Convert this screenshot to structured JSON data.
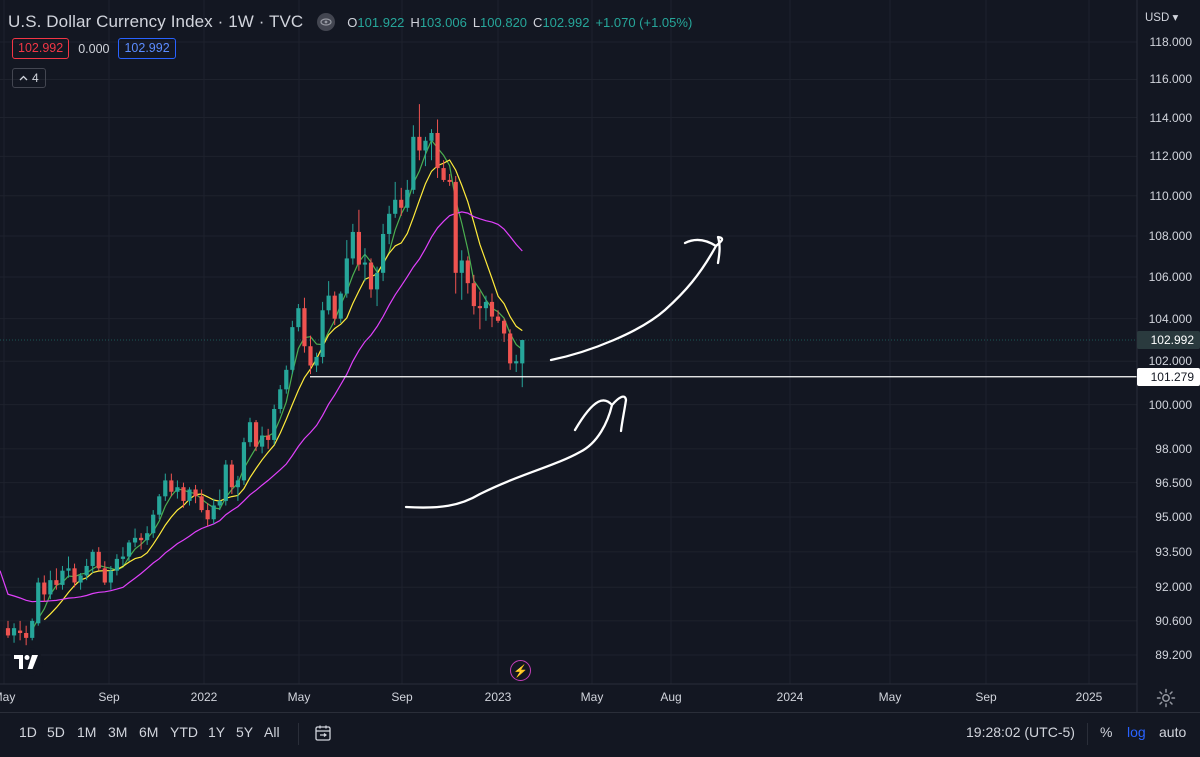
{
  "legend": {
    "title": "U.S. Dollar Currency Index · 1W · TVC",
    "o_key": "O",
    "o_val": "101.922",
    "h_key": "H",
    "h_val": "103.006",
    "l_key": "L",
    "l_val": "100.820",
    "c_key": "C",
    "c_val": "102.992",
    "change": "+1.070 (+1.05%)"
  },
  "indicators": {
    "box1": "102.992",
    "mid": "0.000",
    "box2": "102.992",
    "collapsed_count": "4"
  },
  "axis": {
    "currency": "USD",
    "price_labels": [
      "118.000",
      "116.000",
      "114.000",
      "112.000",
      "110.000",
      "108.000",
      "106.000",
      "104.000",
      "102.000",
      "100.000",
      "98.000",
      "96.500",
      "95.000",
      "93.500",
      "92.000",
      "90.600",
      "89.200"
    ],
    "last_price": "102.992",
    "line_price": "101.279",
    "time_labels": [
      "May",
      "Sep",
      "2022",
      "May",
      "Sep",
      "2023",
      "May",
      "Aug",
      "2024",
      "May",
      "Sep",
      "2025"
    ]
  },
  "colors": {
    "bg": "#131722",
    "up": "#26a69a",
    "down": "#ef5350",
    "ma_green": "#4caf50",
    "ma_yellow": "#ffeb3b",
    "ma_purple": "#e040fb"
  },
  "icons": [
    "eye-icon",
    "chevron-icon",
    "tradingview-logo-icon",
    "lightning-icon",
    "gear-icon",
    "calendar-range-icon"
  ],
  "bottom": {
    "ranges": [
      "1D",
      "5D",
      "1M",
      "3M",
      "6M",
      "YTD",
      "1Y",
      "5Y",
      "All"
    ],
    "clock": "19:28:02 (UTC-5)",
    "percent": "%",
    "log": "log",
    "auto": "auto"
  },
  "chart_data": {
    "type": "candlestick",
    "title": "U.S. Dollar Currency Index · 1W · TVC",
    "interval": "1W",
    "ylabel": "USD",
    "ylim": [
      88.5,
      119
    ],
    "y_scale": "log",
    "grid": true,
    "first_week": "2021-05-10",
    "last_week": "2023-01-23",
    "candles": [
      {
        "o": 90.3,
        "h": 90.6,
        "l": 89.9,
        "c": 90.0
      },
      {
        "o": 90.0,
        "h": 90.5,
        "l": 89.7,
        "c": 90.3
      },
      {
        "o": 90.2,
        "h": 90.6,
        "l": 89.8,
        "c": 90.1
      },
      {
        "o": 90.1,
        "h": 90.4,
        "l": 89.6,
        "c": 89.9
      },
      {
        "o": 89.9,
        "h": 90.7,
        "l": 89.8,
        "c": 90.6
      },
      {
        "o": 90.5,
        "h": 92.4,
        "l": 90.4,
        "c": 92.2
      },
      {
        "o": 92.2,
        "h": 92.5,
        "l": 91.4,
        "c": 91.7
      },
      {
        "o": 91.7,
        "h": 92.7,
        "l": 91.5,
        "c": 92.3
      },
      {
        "o": 92.3,
        "h": 92.8,
        "l": 91.9,
        "c": 92.1
      },
      {
        "o": 92.1,
        "h": 92.9,
        "l": 91.9,
        "c": 92.7
      },
      {
        "o": 92.7,
        "h": 93.3,
        "l": 92.4,
        "c": 92.8
      },
      {
        "o": 92.8,
        "h": 93.0,
        "l": 92.0,
        "c": 92.2
      },
      {
        "o": 92.2,
        "h": 92.6,
        "l": 91.9,
        "c": 92.5
      },
      {
        "o": 92.5,
        "h": 93.2,
        "l": 92.3,
        "c": 92.9
      },
      {
        "o": 92.9,
        "h": 93.6,
        "l": 92.6,
        "c": 93.5
      },
      {
        "o": 93.5,
        "h": 93.7,
        "l": 92.7,
        "c": 92.8
      },
      {
        "o": 92.8,
        "h": 93.1,
        "l": 92.1,
        "c": 92.2
      },
      {
        "o": 92.2,
        "h": 92.9,
        "l": 91.9,
        "c": 92.7
      },
      {
        "o": 92.7,
        "h": 93.4,
        "l": 92.5,
        "c": 93.2
      },
      {
        "o": 93.2,
        "h": 93.7,
        "l": 92.9,
        "c": 93.3
      },
      {
        "o": 93.3,
        "h": 94.0,
        "l": 93.1,
        "c": 93.9
      },
      {
        "o": 93.9,
        "h": 94.5,
        "l": 93.7,
        "c": 94.1
      },
      {
        "o": 94.1,
        "h": 94.3,
        "l": 93.6,
        "c": 94.0
      },
      {
        "o": 94.0,
        "h": 94.6,
        "l": 93.8,
        "c": 94.3
      },
      {
        "o": 94.3,
        "h": 95.3,
        "l": 94.1,
        "c": 95.1
      },
      {
        "o": 95.1,
        "h": 96.0,
        "l": 94.9,
        "c": 95.9
      },
      {
        "o": 95.9,
        "h": 96.9,
        "l": 95.7,
        "c": 96.6
      },
      {
        "o": 96.6,
        "h": 96.9,
        "l": 95.9,
        "c": 96.1
      },
      {
        "o": 96.1,
        "h": 96.6,
        "l": 95.8,
        "c": 96.3
      },
      {
        "o": 96.3,
        "h": 96.5,
        "l": 95.4,
        "c": 95.7
      },
      {
        "o": 95.7,
        "h": 96.3,
        "l": 95.5,
        "c": 96.2
      },
      {
        "o": 96.2,
        "h": 96.4,
        "l": 95.6,
        "c": 95.9
      },
      {
        "o": 95.9,
        "h": 96.2,
        "l": 95.2,
        "c": 95.3
      },
      {
        "o": 95.3,
        "h": 95.6,
        "l": 94.6,
        "c": 94.9
      },
      {
        "o": 94.9,
        "h": 95.8,
        "l": 94.7,
        "c": 95.5
      },
      {
        "o": 95.5,
        "h": 96.2,
        "l": 95.3,
        "c": 95.7
      },
      {
        "o": 95.7,
        "h": 97.5,
        "l": 95.5,
        "c": 97.3
      },
      {
        "o": 97.3,
        "h": 97.5,
        "l": 96.0,
        "c": 96.3
      },
      {
        "o": 96.3,
        "h": 96.8,
        "l": 95.7,
        "c": 96.6
      },
      {
        "o": 96.6,
        "h": 98.5,
        "l": 96.4,
        "c": 98.3
      },
      {
        "o": 98.3,
        "h": 99.4,
        "l": 98.1,
        "c": 99.2
      },
      {
        "o": 99.2,
        "h": 99.3,
        "l": 97.9,
        "c": 98.1
      },
      {
        "o": 98.1,
        "h": 99.0,
        "l": 97.8,
        "c": 98.6
      },
      {
        "o": 98.6,
        "h": 98.9,
        "l": 98.0,
        "c": 98.4
      },
      {
        "o": 98.4,
        "h": 100.0,
        "l": 98.2,
        "c": 99.8
      },
      {
        "o": 99.8,
        "h": 100.9,
        "l": 99.6,
        "c": 100.7
      },
      {
        "o": 100.7,
        "h": 101.8,
        "l": 100.5,
        "c": 101.6
      },
      {
        "o": 101.6,
        "h": 103.9,
        "l": 101.4,
        "c": 103.6
      },
      {
        "o": 103.6,
        "h": 104.7,
        "l": 103.4,
        "c": 104.5
      },
      {
        "o": 104.5,
        "h": 105.0,
        "l": 102.4,
        "c": 102.7
      },
      {
        "o": 102.7,
        "h": 103.2,
        "l": 101.4,
        "c": 101.8
      },
      {
        "o": 101.8,
        "h": 102.4,
        "l": 101.5,
        "c": 102.2
      },
      {
        "o": 102.2,
        "h": 104.8,
        "l": 101.9,
        "c": 104.4
      },
      {
        "o": 104.4,
        "h": 105.8,
        "l": 104.2,
        "c": 105.1
      },
      {
        "o": 105.1,
        "h": 105.3,
        "l": 103.7,
        "c": 104.0
      },
      {
        "o": 104.0,
        "h": 105.3,
        "l": 103.8,
        "c": 105.2
      },
      {
        "o": 105.2,
        "h": 107.8,
        "l": 105.0,
        "c": 106.9
      },
      {
        "o": 106.9,
        "h": 108.6,
        "l": 106.6,
        "c": 108.2
      },
      {
        "o": 108.2,
        "h": 109.3,
        "l": 106.3,
        "c": 106.6
      },
      {
        "o": 106.6,
        "h": 107.4,
        "l": 105.8,
        "c": 106.7
      },
      {
        "o": 106.7,
        "h": 106.9,
        "l": 105.0,
        "c": 105.4
      },
      {
        "o": 105.4,
        "h": 106.5,
        "l": 104.6,
        "c": 106.2
      },
      {
        "o": 106.2,
        "h": 108.6,
        "l": 105.8,
        "c": 108.1
      },
      {
        "o": 108.1,
        "h": 109.5,
        "l": 107.6,
        "c": 109.1
      },
      {
        "o": 109.1,
        "h": 110.7,
        "l": 108.9,
        "c": 109.8
      },
      {
        "o": 109.8,
        "h": 110.4,
        "l": 109.0,
        "c": 109.4
      },
      {
        "o": 109.4,
        "h": 110.8,
        "l": 109.2,
        "c": 110.3
      },
      {
        "o": 110.3,
        "h": 113.6,
        "l": 110.1,
        "c": 113.0
      },
      {
        "o": 113.0,
        "h": 114.7,
        "l": 111.8,
        "c": 112.3
      },
      {
        "o": 112.3,
        "h": 113.0,
        "l": 111.5,
        "c": 112.8
      },
      {
        "o": 112.8,
        "h": 113.4,
        "l": 111.8,
        "c": 113.2
      },
      {
        "o": 113.2,
        "h": 113.9,
        "l": 110.9,
        "c": 111.4
      },
      {
        "o": 111.4,
        "h": 111.8,
        "l": 110.7,
        "c": 110.8
      },
      {
        "o": 110.8,
        "h": 111.1,
        "l": 110.5,
        "c": 110.7
      },
      {
        "o": 110.7,
        "h": 111.0,
        "l": 105.2,
        "c": 106.2
      },
      {
        "o": 106.2,
        "h": 107.3,
        "l": 104.9,
        "c": 106.8
      },
      {
        "o": 106.8,
        "h": 107.0,
        "l": 105.2,
        "c": 105.7
      },
      {
        "o": 105.7,
        "h": 106.1,
        "l": 104.2,
        "c": 104.6
      },
      {
        "o": 104.6,
        "h": 105.3,
        "l": 103.5,
        "c": 104.5
      },
      {
        "o": 104.5,
        "h": 105.1,
        "l": 103.9,
        "c": 104.8
      },
      {
        "o": 104.8,
        "h": 105.2,
        "l": 103.6,
        "c": 104.1
      },
      {
        "o": 104.1,
        "h": 104.4,
        "l": 103.8,
        "c": 103.9
      },
      {
        "o": 103.9,
        "h": 104.0,
        "l": 102.9,
        "c": 103.3
      },
      {
        "o": 103.3,
        "h": 103.5,
        "l": 101.6,
        "c": 101.9
      },
      {
        "o": 101.9,
        "h": 102.3,
        "l": 101.5,
        "c": 102.0
      },
      {
        "o": 101.9,
        "h": 103.0,
        "l": 100.8,
        "c": 102.992
      }
    ],
    "moving_averages": [
      {
        "color": "#4caf50"
      },
      {
        "color": "#ffeb3b"
      },
      {
        "color": "#e040fb"
      }
    ],
    "horizontal_lines": [
      101.279,
      102.992
    ],
    "annotations": "two hand-drawn white upward arrows"
  }
}
